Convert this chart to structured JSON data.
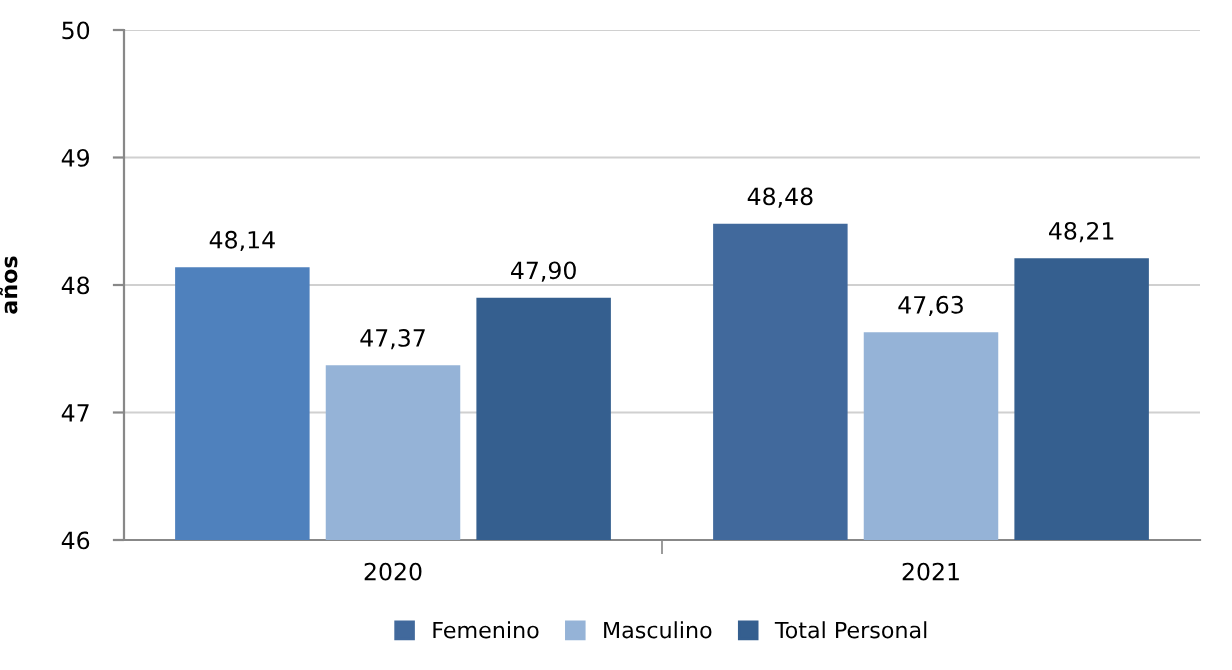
{
  "chart_data": {
    "type": "bar",
    "ylabel": "años",
    "categories": [
      "2020",
      "2021"
    ],
    "series": [
      {
        "name": "Femenino",
        "color": "#41699c",
        "colors": [
          "#4f81bd",
          "#41699c"
        ],
        "values": [
          48.14,
          48.48
        ],
        "value_labels": [
          "48,14",
          "48,48"
        ]
      },
      {
        "name": "Masculino",
        "color": "#95b3d7",
        "values": [
          47.37,
          47.63
        ],
        "value_labels": [
          "47,37",
          "47,63"
        ]
      },
      {
        "name": "Total Personal",
        "color": "#355f8f",
        "values": [
          47.9,
          48.21
        ],
        "value_labels": [
          "47,90",
          "48,21"
        ]
      }
    ],
    "ylim": [
      46,
      50
    ],
    "yticks": [
      46,
      47,
      48,
      49,
      50
    ],
    "grid": "y",
    "legend": "bottom"
  }
}
